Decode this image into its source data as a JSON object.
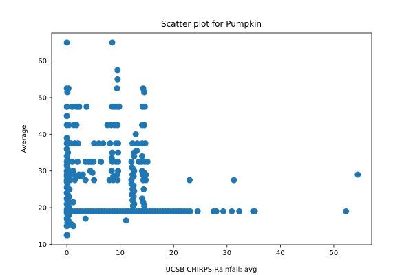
{
  "chart_data": {
    "type": "scatter",
    "title": "Scatter plot for Pumpkin",
    "xlabel": "UCSB CHIRPS Rainfall: avg",
    "ylabel": "Average",
    "xlim": [
      -2.85,
      57.1
    ],
    "ylim": [
      9.9,
      67.6
    ],
    "xticks": [
      0,
      10,
      20,
      30,
      40,
      50
    ],
    "yticks": [
      10,
      20,
      30,
      40,
      50,
      60
    ],
    "grid": false,
    "marker_color": "#1f77b4",
    "series": [
      {
        "points": [
          [
            0,
            65
          ],
          [
            8.5,
            65
          ],
          [
            0,
            52.5
          ],
          [
            0.3,
            52.5
          ],
          [
            0.1,
            51.5
          ],
          [
            14.3,
            52.5
          ],
          [
            14.5,
            51.5
          ],
          [
            9.5,
            57.5
          ],
          [
            9.5,
            55
          ],
          [
            9.4,
            52.5
          ],
          [
            0,
            47.5
          ],
          [
            1,
            47.5
          ],
          [
            1.8,
            47.5
          ],
          [
            2.3,
            47.5
          ],
          [
            3.7,
            47.5
          ],
          [
            8.5,
            47.5
          ],
          [
            8.9,
            47.5
          ],
          [
            9.5,
            47.5
          ],
          [
            9.8,
            47.5
          ],
          [
            14.2,
            47.5
          ],
          [
            14.6,
            47.5
          ],
          [
            0,
            45
          ],
          [
            0,
            42.5
          ],
          [
            0.4,
            42.5
          ],
          [
            1.3,
            42.5
          ],
          [
            1.8,
            42.5
          ],
          [
            7.6,
            42.5
          ],
          [
            8.3,
            42.5
          ],
          [
            8.9,
            42.5
          ],
          [
            9.5,
            42.5
          ],
          [
            14.1,
            42.5
          ],
          [
            14.5,
            42.5
          ],
          [
            12.9,
            40
          ],
          [
            0,
            39
          ],
          [
            0.1,
            38
          ],
          [
            0,
            37.5
          ],
          [
            0.8,
            37.5
          ],
          [
            1.5,
            37.5
          ],
          [
            2.1,
            37.5
          ],
          [
            5.1,
            37.5
          ],
          [
            6,
            37.5
          ],
          [
            6.8,
            37.5
          ],
          [
            8.1,
            37.5
          ],
          [
            9.2,
            37.5
          ],
          [
            9.6,
            37.5
          ],
          [
            12.3,
            37.5
          ],
          [
            13.2,
            37.5
          ],
          [
            14.1,
            37.5
          ],
          [
            14.7,
            37.5
          ],
          [
            0,
            36
          ],
          [
            0.2,
            35
          ],
          [
            8.5,
            35
          ],
          [
            9.6,
            35
          ],
          [
            12.6,
            35
          ],
          [
            13.1,
            35.5
          ],
          [
            0,
            34
          ],
          [
            0.1,
            33
          ],
          [
            8.4,
            33.5
          ],
          [
            12.6,
            34
          ],
          [
            14.1,
            34
          ],
          [
            0,
            32.5
          ],
          [
            0.3,
            32.5
          ],
          [
            1,
            32.5
          ],
          [
            2,
            32.5
          ],
          [
            3.5,
            32.5
          ],
          [
            4.1,
            32.5
          ],
          [
            4.5,
            32.5
          ],
          [
            5,
            32.5
          ],
          [
            6.4,
            32.5
          ],
          [
            8.5,
            32.5
          ],
          [
            9.2,
            32.5
          ],
          [
            9.6,
            32.5
          ],
          [
            12.1,
            32.5
          ],
          [
            13.5,
            32.5
          ],
          [
            14,
            32.5
          ],
          [
            14.6,
            32.5
          ],
          [
            15.1,
            32.5
          ],
          [
            0,
            31.5
          ],
          [
            0.1,
            31
          ],
          [
            0.2,
            30
          ],
          [
            12.2,
            31
          ],
          [
            12.4,
            30.5
          ],
          [
            0,
            30
          ],
          [
            0.4,
            30
          ],
          [
            1.2,
            30
          ],
          [
            4.4,
            30
          ],
          [
            8.4,
            30
          ],
          [
            9.6,
            30
          ],
          [
            12.6,
            30
          ],
          [
            14.1,
            30
          ],
          [
            14.5,
            29.5
          ],
          [
            0,
            29
          ],
          [
            0.5,
            29
          ],
          [
            1.2,
            29
          ],
          [
            2.3,
            29
          ],
          [
            3,
            29
          ],
          [
            4.8,
            29.5
          ],
          [
            9.4,
            29
          ],
          [
            12.3,
            29
          ],
          [
            14.2,
            29
          ],
          [
            14.8,
            29
          ],
          [
            54.5,
            29
          ],
          [
            0,
            28.5
          ],
          [
            0.2,
            28
          ],
          [
            1.8,
            28.5
          ],
          [
            2.6,
            28.5
          ],
          [
            8.7,
            28.5
          ],
          [
            12.5,
            28.5
          ],
          [
            0,
            27.5
          ],
          [
            0.6,
            27.5
          ],
          [
            1.5,
            27.5
          ],
          [
            3.5,
            27.5
          ],
          [
            5.1,
            27.5
          ],
          [
            8,
            27.5
          ],
          [
            8.7,
            27.5
          ],
          [
            9.5,
            27.5
          ],
          [
            12.1,
            27.5
          ],
          [
            14.3,
            27.5
          ],
          [
            14.8,
            27.5
          ],
          [
            23,
            27.5
          ],
          [
            31.3,
            27.5
          ],
          [
            0,
            27
          ],
          [
            0.1,
            26
          ],
          [
            12.1,
            26.5
          ],
          [
            12.5,
            26
          ],
          [
            0,
            25.5
          ],
          [
            0.3,
            25
          ],
          [
            0.5,
            25
          ],
          [
            12.3,
            25
          ],
          [
            12.6,
            24.5
          ],
          [
            14.4,
            25
          ],
          [
            0,
            24
          ],
          [
            0.2,
            23.5
          ],
          [
            0.4,
            23
          ],
          [
            12.2,
            23.5
          ],
          [
            12.5,
            23
          ],
          [
            0,
            22.5
          ],
          [
            0.1,
            22
          ],
          [
            0.5,
            21.5
          ],
          [
            1.2,
            21.5
          ],
          [
            12.3,
            22
          ],
          [
            14.1,
            22.5
          ],
          [
            14.3,
            21.5
          ],
          [
            0,
            21
          ],
          [
            0.3,
            20.5
          ],
          [
            0.1,
            20
          ],
          [
            12.6,
            21
          ],
          [
            12.4,
            20.5
          ],
          [
            14.5,
            20.5
          ],
          [
            0,
            19.5
          ],
          [
            0.4,
            20
          ],
          [
            0,
            19
          ],
          [
            0.5,
            19
          ],
          [
            1,
            19
          ],
          [
            1.5,
            19
          ],
          [
            2,
            19
          ],
          [
            2.5,
            19
          ],
          [
            3,
            19
          ],
          [
            3.5,
            19
          ],
          [
            4,
            19
          ],
          [
            4.5,
            19
          ],
          [
            5,
            19
          ],
          [
            5.5,
            19
          ],
          [
            6,
            19
          ],
          [
            6.5,
            19
          ],
          [
            7,
            19
          ],
          [
            7.5,
            19
          ],
          [
            8,
            19
          ],
          [
            8.5,
            19
          ],
          [
            9,
            19
          ],
          [
            9.5,
            19
          ],
          [
            10,
            19
          ],
          [
            10.5,
            19
          ],
          [
            11,
            19
          ],
          [
            11.5,
            19
          ],
          [
            12,
            19
          ],
          [
            12.5,
            19
          ],
          [
            13,
            19
          ],
          [
            13.5,
            19
          ],
          [
            14,
            19
          ],
          [
            14.5,
            19
          ],
          [
            15,
            19
          ],
          [
            15.5,
            19
          ],
          [
            16,
            19
          ],
          [
            16.5,
            19
          ],
          [
            17,
            19
          ],
          [
            17.5,
            19
          ],
          [
            18,
            19
          ],
          [
            18.5,
            19
          ],
          [
            19,
            19
          ],
          [
            19.5,
            19
          ],
          [
            20,
            19
          ],
          [
            20.5,
            19
          ],
          [
            21,
            19
          ],
          [
            21.5,
            19
          ],
          [
            22,
            19
          ],
          [
            22.5,
            19
          ],
          [
            23.1,
            19
          ],
          [
            24.5,
            19
          ],
          [
            27.5,
            19
          ],
          [
            28,
            19
          ],
          [
            29.3,
            19
          ],
          [
            30.9,
            19
          ],
          [
            32.3,
            19
          ],
          [
            34.9,
            19
          ],
          [
            35.2,
            19
          ],
          [
            52.3,
            19
          ],
          [
            0,
            18.5
          ],
          [
            0.2,
            18
          ],
          [
            0.1,
            17.5
          ],
          [
            0.4,
            18
          ],
          [
            3.5,
            17
          ],
          [
            11.1,
            16.5
          ],
          [
            0,
            17
          ],
          [
            0.3,
            16.5
          ],
          [
            0.1,
            16
          ],
          [
            0.5,
            15.5
          ],
          [
            0.8,
            15.5
          ],
          [
            0,
            15
          ],
          [
            1.2,
            15
          ],
          [
            0,
            12.5
          ],
          [
            0.1,
            12.5
          ]
        ]
      }
    ]
  }
}
